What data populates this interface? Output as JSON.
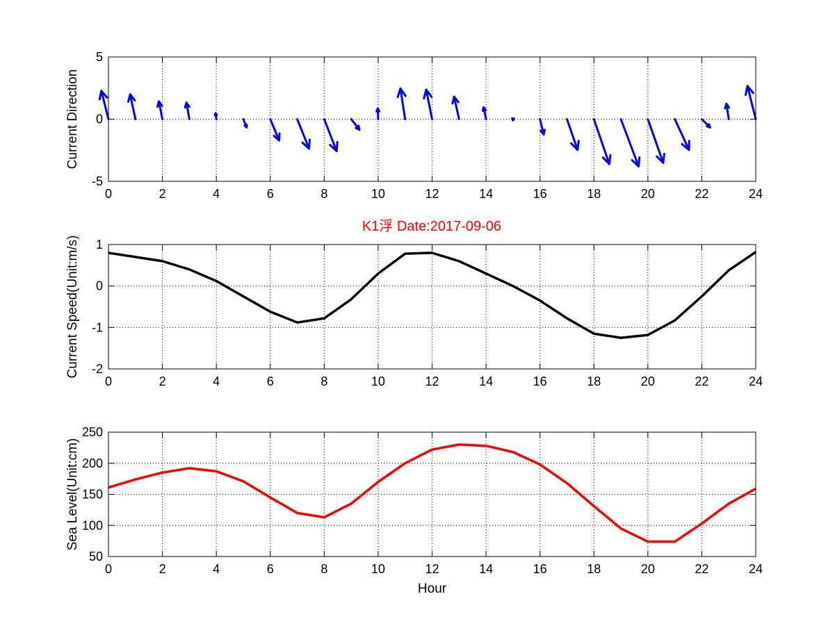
{
  "figure": {
    "title": "K1浮   Date:2017-09-06",
    "title_color": "#ff0000",
    "background": "#ffffff"
  },
  "chart_data": [
    {
      "type": "quiver",
      "ylabel": "Current Direction",
      "xlabel": "",
      "xlim": [
        0,
        24
      ],
      "ylim": [
        -5,
        5
      ],
      "xticks": [
        0,
        2,
        4,
        6,
        8,
        10,
        12,
        14,
        16,
        18,
        20,
        22,
        24
      ],
      "yticks": [
        -5,
        0,
        5
      ],
      "grid": true,
      "color": "#0000ff",
      "x": [
        0,
        1,
        2,
        3,
        4,
        5,
        6,
        7,
        8,
        9,
        10,
        11,
        12,
        13,
        14,
        15,
        16,
        17,
        18,
        19,
        20,
        21,
        22,
        23,
        24
      ],
      "u": [
        -0.6,
        -0.45,
        -0.3,
        -0.25,
        -0.06,
        0.28,
        0.75,
        1.0,
        1.05,
        0.7,
        -0.03,
        -0.4,
        -0.5,
        -0.42,
        -0.2,
        0.0,
        0.32,
        0.9,
        1.3,
        1.5,
        1.3,
        1.2,
        0.7,
        -0.2,
        -0.7
      ],
      "v": [
        2.4,
        2.1,
        1.5,
        1.4,
        0.5,
        -0.7,
        -1.8,
        -2.5,
        -2.7,
        -0.9,
        0.9,
        2.6,
        2.5,
        1.9,
        1.0,
        -0.1,
        -1.3,
        -2.6,
        -3.8,
        -4.0,
        -3.7,
        -2.6,
        -0.7,
        1.3,
        2.8
      ]
    },
    {
      "type": "line",
      "title": "K1浮   Date:2017-09-06",
      "ylabel": "Current Speed(Unit:m/s)",
      "xlabel": "",
      "xlim": [
        0,
        24
      ],
      "ylim": [
        -2,
        1
      ],
      "xticks": [
        0,
        2,
        4,
        6,
        8,
        10,
        12,
        14,
        16,
        18,
        20,
        22,
        24
      ],
      "yticks": [
        -2,
        -1,
        0,
        1
      ],
      "grid": true,
      "color": "#000000",
      "x": [
        0,
        1,
        2,
        3,
        4,
        5,
        6,
        7,
        8,
        9,
        10,
        11,
        12,
        13,
        14,
        15,
        16,
        17,
        18,
        19,
        20,
        21,
        22,
        23,
        24
      ],
      "y": [
        0.8,
        0.7,
        0.6,
        0.4,
        0.12,
        -0.25,
        -0.62,
        -0.88,
        -0.78,
        -0.32,
        0.3,
        0.78,
        0.8,
        0.6,
        0.3,
        0.0,
        -0.35,
        -0.78,
        -1.15,
        -1.25,
        -1.18,
        -0.83,
        -0.25,
        0.38,
        0.82
      ]
    },
    {
      "type": "line",
      "ylabel": "Sea Level(Unit:cm)",
      "xlabel": "Hour",
      "xlim": [
        0,
        24
      ],
      "ylim": [
        50,
        250
      ],
      "xticks": [
        0,
        2,
        4,
        6,
        8,
        10,
        12,
        14,
        16,
        18,
        20,
        22,
        24
      ],
      "yticks": [
        50,
        100,
        150,
        200,
        250
      ],
      "grid": true,
      "color": "#ff0000",
      "x": [
        0,
        1,
        2,
        3,
        4,
        5,
        6,
        7,
        8,
        9,
        10,
        11,
        12,
        13,
        14,
        15,
        16,
        17,
        18,
        19,
        20,
        21,
        22,
        23,
        24
      ],
      "y": [
        161,
        174,
        185,
        192,
        187,
        171,
        145,
        120,
        113,
        135,
        170,
        200,
        222,
        230,
        228,
        218,
        198,
        168,
        131,
        95,
        74,
        74,
        103,
        135,
        159
      ]
    }
  ]
}
